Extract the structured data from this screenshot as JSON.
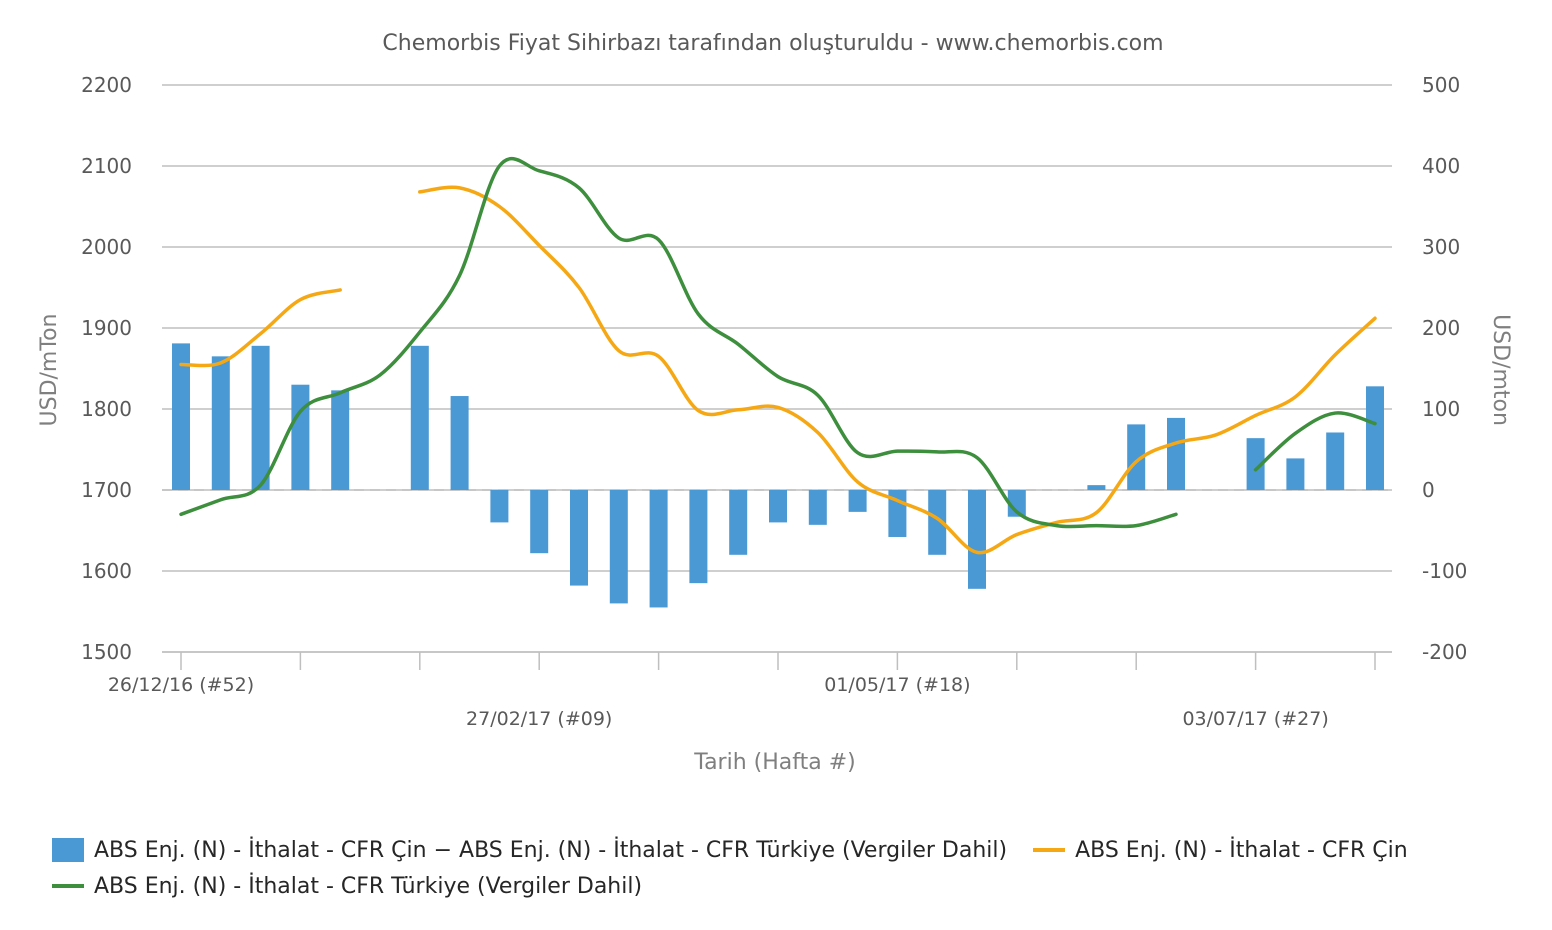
{
  "chart_data": {
    "type": "bar",
    "title": "Chemorbis Fiyat Sihirbazı tarafından oluşturuldu - www.chemorbis.com",
    "xlabel": "Tarih (Hafta #)",
    "ylabel_left": "USD/mTon",
    "ylabel_right": "USD/mton",
    "ylim_left": [
      1500,
      2200
    ],
    "ylim_right": [
      -200,
      500
    ],
    "yticks_left": [
      1500,
      1600,
      1700,
      1800,
      1900,
      2000,
      2100,
      2200
    ],
    "yticks_right": [
      -200,
      -100,
      0,
      100,
      200,
      300,
      400,
      500
    ],
    "x_labels": [
      {
        "week": 0,
        "text": "26/12/16 (#52)"
      },
      {
        "week": 9,
        "text": "27/02/17 (#09)"
      },
      {
        "week": 18,
        "text": "01/05/17 (#18)"
      },
      {
        "week": 27,
        "text": "03/07/17 (#27)"
      }
    ],
    "grid": true,
    "legend_position": "bottom",
    "series": [
      {
        "name": "ABS Enj. (N) - İthalat - CFR Çin − ABS Enj. (N) - İthalat - CFR Türkiye (Vergiler Dahil)",
        "type": "bar",
        "axis": "right",
        "color": "#4a98d4",
        "points": [
          [
            0,
            181
          ],
          [
            1,
            165
          ],
          [
            2,
            178
          ],
          [
            3,
            130
          ],
          [
            4,
            123
          ],
          [
            6,
            178
          ],
          [
            7,
            116
          ],
          [
            8,
            -40
          ],
          [
            9,
            -78
          ],
          [
            10,
            -118
          ],
          [
            11,
            -140
          ],
          [
            12,
            -145
          ],
          [
            13,
            -115
          ],
          [
            14,
            -80
          ],
          [
            15,
            -40
          ],
          [
            16,
            -43
          ],
          [
            17,
            -27
          ],
          [
            18,
            -58
          ],
          [
            19,
            -80
          ],
          [
            20,
            -122
          ],
          [
            21,
            -33
          ],
          [
            23,
            6
          ],
          [
            24,
            81
          ],
          [
            25,
            89
          ],
          [
            27,
            64
          ],
          [
            28,
            39
          ],
          [
            29,
            71
          ],
          [
            30,
            128
          ]
        ]
      },
      {
        "name": "ABS Enj. (N) - İthalat - CFR Çin",
        "type": "line",
        "axis": "left",
        "color": "#f5a814",
        "segments": [
          [
            [
              0,
              1855
            ],
            [
              1,
              1857
            ],
            [
              2,
              1893
            ],
            [
              3,
              1935
            ],
            [
              4,
              1947
            ]
          ],
          [
            [
              6,
              2068
            ],
            [
              7,
              2073
            ],
            [
              8,
              2050
            ],
            [
              9,
              2002
            ],
            [
              10,
              1950
            ],
            [
              11,
              1872
            ],
            [
              12,
              1865
            ],
            [
              13,
              1798
            ],
            [
              14,
              1799
            ],
            [
              15,
              1802
            ],
            [
              16,
              1771
            ],
            [
              17,
              1710
            ],
            [
              18,
              1687
            ],
            [
              19,
              1665
            ],
            [
              20,
              1623
            ],
            [
              21,
              1645
            ],
            [
              22,
              1660
            ],
            [
              23,
              1672
            ],
            [
              24,
              1735
            ],
            [
              25,
              1758
            ],
            [
              26,
              1768
            ],
            [
              27,
              1792
            ],
            [
              28,
              1815
            ],
            [
              29,
              1867
            ],
            [
              30,
              1912
            ]
          ]
        ]
      },
      {
        "name": "ABS Enj. (N) - İthalat - CFR Türkiye (Vergiler Dahil)",
        "type": "line",
        "axis": "left",
        "color": "#3d8e3d",
        "segments": [
          [
            [
              0,
              1670
            ],
            [
              1,
              1688
            ],
            [
              2,
              1706
            ],
            [
              3,
              1797
            ],
            [
              4,
              1820
            ],
            [
              5,
              1842
            ],
            [
              6,
              1895
            ],
            [
              7,
              1965
            ],
            [
              8,
              2100
            ],
            [
              9,
              2094
            ],
            [
              10,
              2073
            ],
            [
              11,
              2011
            ],
            [
              12,
              2009
            ],
            [
              13,
              1917
            ],
            [
              14,
              1880
            ],
            [
              15,
              1840
            ],
            [
              16,
              1817
            ],
            [
              17,
              1746
            ],
            [
              18,
              1748
            ],
            [
              19,
              1747
            ],
            [
              20,
              1740
            ],
            [
              21,
              1673
            ],
            [
              22,
              1656
            ],
            [
              23,
              1656
            ],
            [
              24,
              1656
            ],
            [
              25,
              1670
            ]
          ],
          [
            [
              27,
              1725
            ],
            [
              28,
              1770
            ],
            [
              29,
              1795
            ],
            [
              30,
              1782
            ]
          ]
        ]
      }
    ]
  }
}
